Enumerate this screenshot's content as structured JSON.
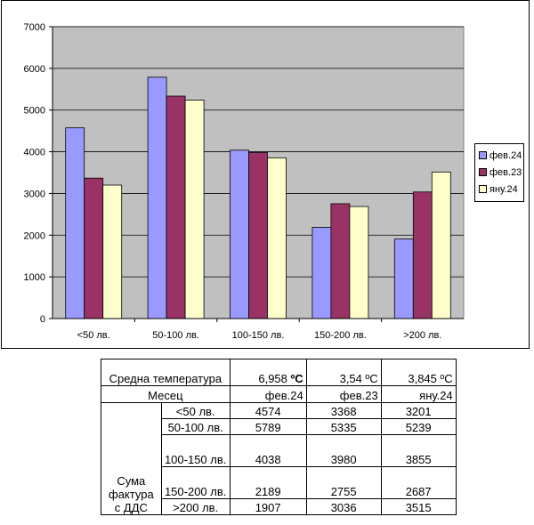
{
  "chart_data": {
    "type": "bar",
    "categories": [
      "<50 лв.",
      "50-100 лв.",
      "100-150 лв.",
      "150-200 лв.",
      ">200 лв."
    ],
    "series": [
      {
        "name": "фев.24",
        "values": [
          4574,
          5789,
          4038,
          2189,
          1907
        ]
      },
      {
        "name": "фев.23",
        "values": [
          3368,
          5335,
          3980,
          2755,
          3036
        ]
      },
      {
        "name": "яну.24",
        "values": [
          3201,
          5239,
          3855,
          2687,
          3515
        ]
      }
    ],
    "yticks": [
      "0",
      "1000",
      "2000",
      "3000",
      "4000",
      "5000",
      "6000",
      "7000"
    ],
    "ylim": [
      0,
      7000
    ],
    "colors": [
      "#9999ff",
      "#993366",
      "#ffffcc"
    ],
    "plot_background": "#c0c0c0",
    "grid": true,
    "legend_position": "right"
  },
  "table": {
    "temp_label": "Средна температура",
    "temp_values": [
      {
        "number": "6,958",
        "unit": "ºC"
      },
      {
        "number": "3,54",
        "unit": "ºC"
      },
      {
        "number": "3,845",
        "unit": "ºC"
      }
    ],
    "month_label": "Месец",
    "months": [
      "фев.24",
      "фев.23",
      "яну.24"
    ],
    "group_label": "Сума фактура с ДДС",
    "rows": [
      {
        "label": "<50 лв.",
        "values": [
          "4574",
          "3368",
          "3201"
        ]
      },
      {
        "label": "50-100 лв.",
        "values": [
          "5789",
          "5335",
          "5239"
        ]
      },
      {
        "label": "100-150 лв.",
        "values": [
          "4038",
          "3980",
          "3855"
        ]
      },
      {
        "label": "150-200 лв.",
        "values": [
          "2189",
          "2755",
          "2687"
        ]
      },
      {
        "label": ">200 лв.",
        "values": [
          "1907",
          "3036",
          "3515"
        ]
      }
    ]
  }
}
